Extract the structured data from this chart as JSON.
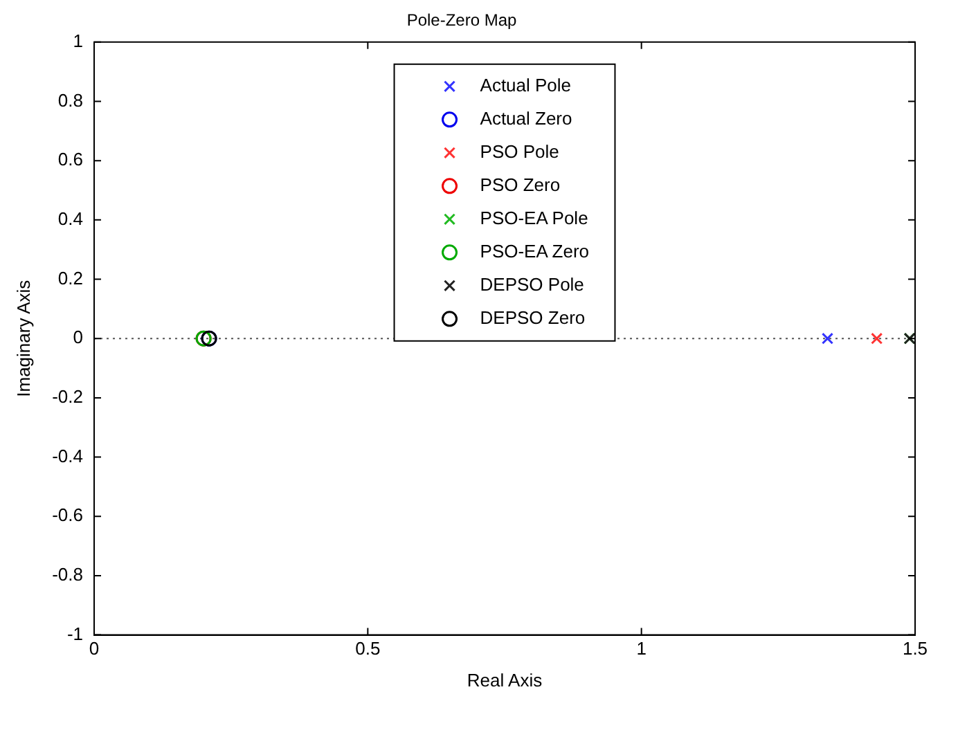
{
  "chart_data": {
    "type": "scatter",
    "title": "Pole-Zero Map",
    "xlabel": "Real Axis",
    "ylabel": "Imaginary Axis",
    "xlim": [
      0,
      1.5
    ],
    "xticks": [
      0,
      0.5,
      1,
      1.5
    ],
    "ylim": [
      -1,
      1
    ],
    "yticks": [
      -1,
      -0.8,
      -0.6,
      -0.4,
      -0.2,
      0,
      0.2,
      0.4,
      0.6,
      0.8,
      1
    ],
    "grid": false,
    "legend": "top",
    "ref_lines": [
      {
        "axis": "y",
        "value": 0,
        "color": "#555555",
        "line_style": "dotted"
      }
    ],
    "series": [
      {
        "name": "Actual Pole",
        "color": "#3333ff",
        "marker": "cross",
        "x": [
          1.34
        ],
        "values": [
          0
        ]
      },
      {
        "name": "Actual Zero",
        "color": "#0000ee",
        "marker": "circle",
        "x": [
          0.21
        ],
        "values": [
          0
        ]
      },
      {
        "name": "PSO Pole",
        "color": "#ff3333",
        "marker": "cross",
        "x": [
          1.43
        ],
        "values": [
          0
        ]
      },
      {
        "name": "PSO Zero",
        "color": "#ee0000",
        "marker": "circle",
        "x": [
          0.2
        ],
        "values": [
          0
        ]
      },
      {
        "name": "PSO-EA Pole",
        "color": "#22bb22",
        "marker": "cross",
        "x": [
          1.49
        ],
        "values": [
          0
        ]
      },
      {
        "name": "PSO-EA Zero",
        "color": "#00aa00",
        "marker": "circle",
        "x": [
          0.2
        ],
        "values": [
          0
        ]
      },
      {
        "name": "DEPSO Pole",
        "color": "#222222",
        "marker": "cross",
        "x": [
          1.49
        ],
        "values": [
          0
        ]
      },
      {
        "name": "DEPSO Zero",
        "color": "#000000",
        "marker": "circle",
        "x": [
          0.21
        ],
        "values": [
          0
        ]
      }
    ]
  }
}
